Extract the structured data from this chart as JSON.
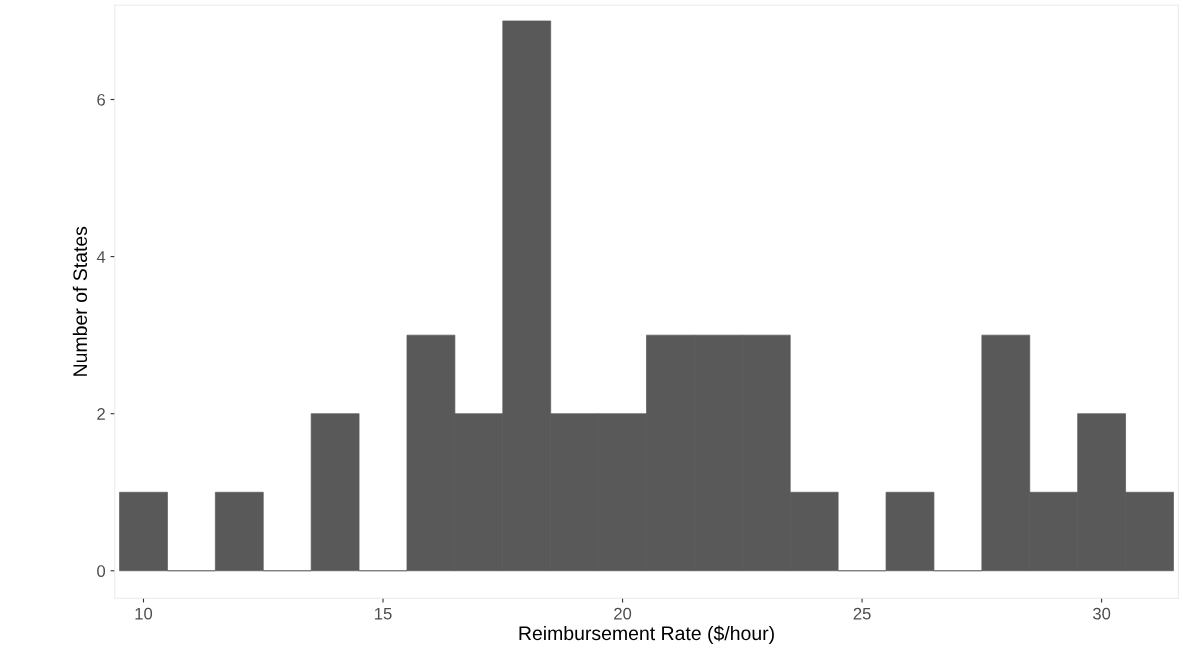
{
  "chart_data": {
    "type": "histogram",
    "xlabel": "Reimbursement Rate ($/hour)",
    "ylabel": "Number of States",
    "color": "#595959",
    "bins": [
      9.5,
      10.5,
      11.5,
      12.5,
      13.5,
      14.5,
      15.5,
      16.5,
      17.5,
      18.5,
      19.5,
      20.5,
      21.5,
      22.5,
      23.5,
      24.5,
      25.5,
      26.5,
      27.5,
      28.5,
      29.5,
      30.5,
      31.5
    ],
    "values": [
      1,
      0,
      1,
      0,
      2,
      0,
      3,
      2,
      7,
      2,
      2,
      3,
      3,
      3,
      1,
      0,
      1,
      0,
      3,
      1,
      2,
      1
    ],
    "xlim": [
      9.4,
      31.6
    ],
    "xticks": [
      10,
      15,
      20,
      25,
      30
    ],
    "ylim": [
      -0.35,
      7.2
    ],
    "yticks": [
      0,
      2,
      4,
      6
    ],
    "grid": false,
    "legend": false
  }
}
